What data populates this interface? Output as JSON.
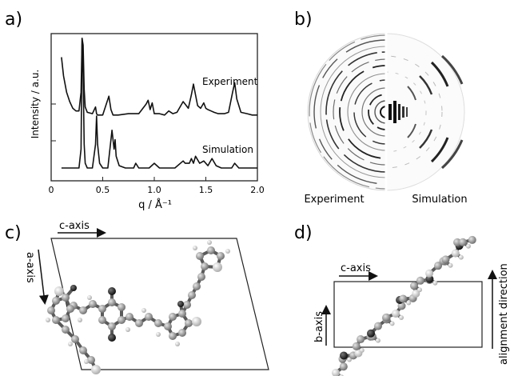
{
  "figure": {
    "panels": {
      "a": {
        "label": "a)"
      },
      "b": {
        "label": "b)"
      },
      "c": {
        "label": "c)"
      },
      "d": {
        "label": "d)"
      }
    },
    "panel_b": {
      "left_label": "Experiment",
      "right_label": "Simulation"
    },
    "panel_c": {
      "c_axis_label": "c-axis",
      "a_axis_label": "a-axis"
    },
    "panel_d": {
      "c_axis_label": "c-axis",
      "b_axis_label": "b-axis",
      "alignment_label": "alignment direction"
    }
  },
  "chart_data": {
    "type": "line",
    "xlabel": "q / Å⁻¹",
    "ylabel": "Intensity / a.u.",
    "xlim": [
      0,
      2.0
    ],
    "xticks": [
      "0",
      "0.5",
      "1.0",
      "1.5",
      "2.0"
    ],
    "series": [
      {
        "name": "Experiment",
        "x": [
          0.1,
          0.12,
          0.15,
          0.18,
          0.21,
          0.24,
          0.27,
          0.29,
          0.3,
          0.31,
          0.32,
          0.33,
          0.35,
          0.4,
          0.43,
          0.44,
          0.45,
          0.5,
          0.56,
          0.58,
          0.6,
          0.65,
          0.75,
          0.85,
          0.92,
          0.94,
          0.96,
          0.98,
          1.0,
          1.05,
          1.1,
          1.14,
          1.18,
          1.22,
          1.28,
          1.3,
          1.33,
          1.36,
          1.38,
          1.4,
          1.42,
          1.45,
          1.48,
          1.5,
          1.52,
          1.55,
          1.58,
          1.62,
          1.68,
          1.72,
          1.76,
          1.78,
          1.8,
          1.84,
          1.9,
          1.95,
          2.0
        ],
        "y": [
          0.86,
          0.72,
          0.6,
          0.53,
          0.48,
          0.46,
          0.46,
          0.6,
          1.0,
          0.95,
          0.62,
          0.49,
          0.45,
          0.44,
          0.49,
          0.44,
          0.43,
          0.43,
          0.57,
          0.47,
          0.43,
          0.43,
          0.44,
          0.44,
          0.51,
          0.54,
          0.47,
          0.52,
          0.44,
          0.44,
          0.43,
          0.46,
          0.44,
          0.45,
          0.53,
          0.51,
          0.48,
          0.58,
          0.66,
          0.58,
          0.5,
          0.48,
          0.52,
          0.48,
          0.47,
          0.46,
          0.45,
          0.44,
          0.44,
          0.45,
          0.6,
          0.67,
          0.55,
          0.45,
          0.44,
          0.43,
          0.43
        ]
      },
      {
        "name": "Simulation",
        "x": [
          0.1,
          0.2,
          0.27,
          0.29,
          0.3,
          0.31,
          0.32,
          0.33,
          0.35,
          0.4,
          0.43,
          0.44,
          0.45,
          0.47,
          0.5,
          0.55,
          0.57,
          0.59,
          0.61,
          0.62,
          0.63,
          0.66,
          0.72,
          0.8,
          0.82,
          0.85,
          0.95,
          1.0,
          1.05,
          1.2,
          1.28,
          1.3,
          1.34,
          1.36,
          1.38,
          1.4,
          1.44,
          1.48,
          1.52,
          1.56,
          1.6,
          1.65,
          1.75,
          1.78,
          1.82,
          1.9,
          2.0
        ],
        "y": [
          0.0,
          0.0,
          0.0,
          0.08,
          0.55,
          0.4,
          0.1,
          0.02,
          0.0,
          0.0,
          0.1,
          0.22,
          0.1,
          0.02,
          0.0,
          0.0,
          0.08,
          0.16,
          0.08,
          0.12,
          0.05,
          0.01,
          0.0,
          0.0,
          0.02,
          0.0,
          0.0,
          0.02,
          0.0,
          0.0,
          0.03,
          0.02,
          0.02,
          0.04,
          0.02,
          0.05,
          0.02,
          0.03,
          0.01,
          0.04,
          0.01,
          0.0,
          0.0,
          0.02,
          0.0,
          0.0,
          0.0
        ]
      }
    ],
    "annotations": [
      "Experiment",
      "Simulation"
    ]
  }
}
